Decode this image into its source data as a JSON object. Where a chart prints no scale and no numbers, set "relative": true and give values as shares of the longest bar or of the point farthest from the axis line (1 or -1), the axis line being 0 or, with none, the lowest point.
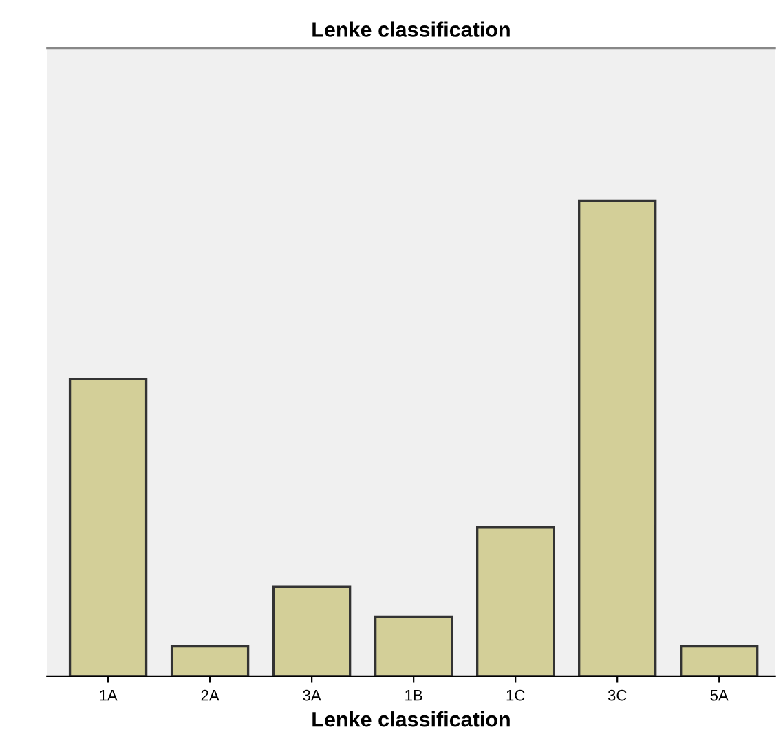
{
  "chart_data": {
    "type": "bar",
    "title": "Lenke classification",
    "xlabel": "Lenke classification",
    "relative": true,
    "categories": [
      "1A",
      "2A",
      "3A",
      "1B",
      "1C",
      "3C",
      "5A"
    ],
    "values": [
      0.625,
      0.0625,
      0.1875,
      0.125,
      0.3125,
      1,
      0.0625
    ],
    "color": "#d3cf98",
    "grid": false,
    "legend": false
  }
}
